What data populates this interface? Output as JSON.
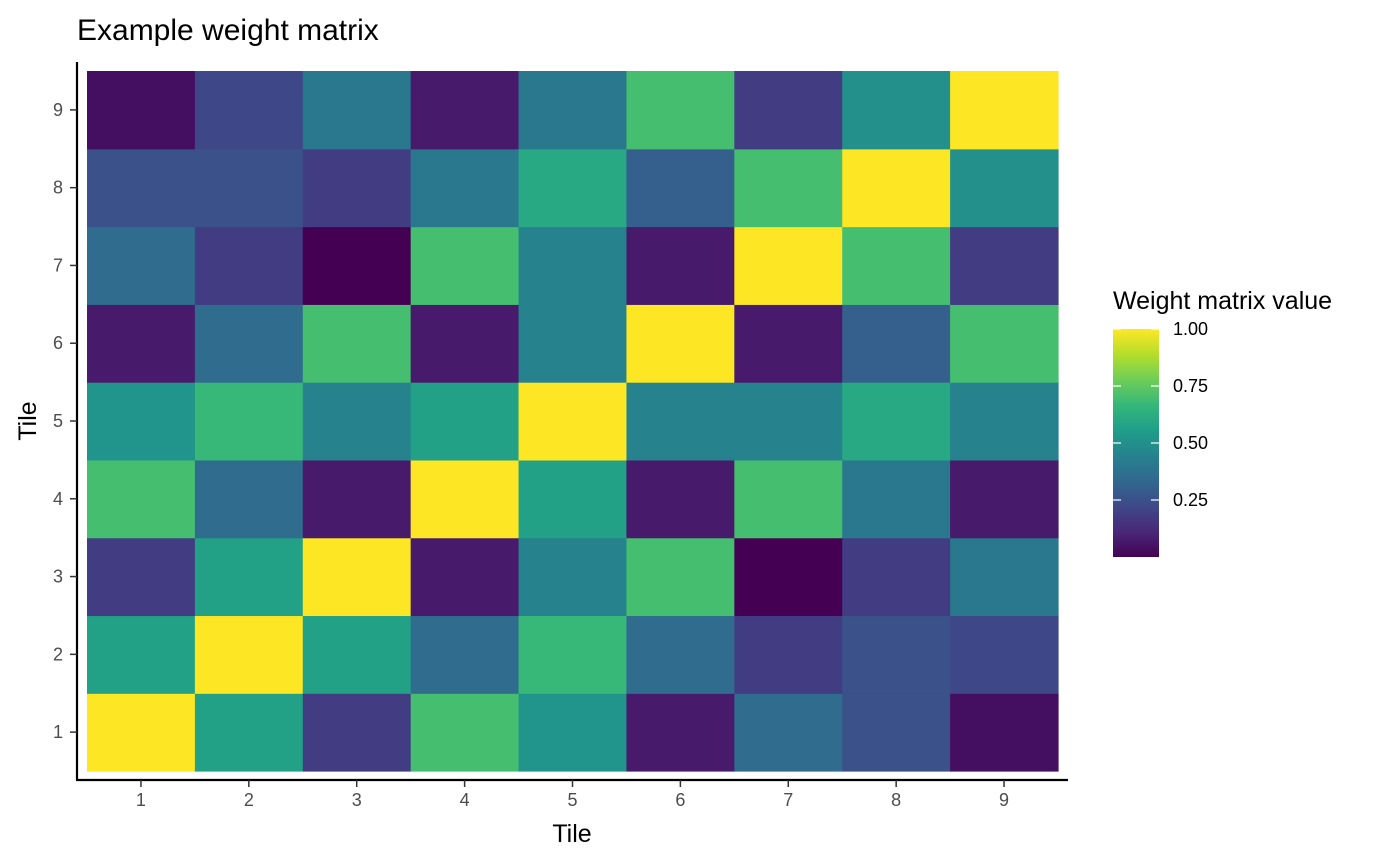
{
  "chart_data": {
    "type": "heatmap",
    "title": "Example weight matrix",
    "xlabel": "Tile",
    "ylabel": "Tile",
    "x_categories": [
      "1",
      "2",
      "3",
      "4",
      "5",
      "6",
      "7",
      "8",
      "9"
    ],
    "y_categories": [
      "1",
      "2",
      "3",
      "4",
      "5",
      "6",
      "7",
      "8",
      "9"
    ],
    "values": [
      [
        1.0,
        0.57,
        0.18,
        0.7,
        0.52,
        0.07,
        0.35,
        0.25,
        0.04
      ],
      [
        0.57,
        1.0,
        0.57,
        0.35,
        0.67,
        0.35,
        0.18,
        0.25,
        0.22
      ],
      [
        0.18,
        0.57,
        1.0,
        0.07,
        0.45,
        0.7,
        0.0,
        0.18,
        0.4
      ],
      [
        0.7,
        0.35,
        0.07,
        1.0,
        0.57,
        0.07,
        0.7,
        0.4,
        0.07
      ],
      [
        0.52,
        0.67,
        0.45,
        0.57,
        1.0,
        0.45,
        0.45,
        0.6,
        0.4
      ],
      [
        0.07,
        0.35,
        0.7,
        0.07,
        0.45,
        1.0,
        0.07,
        0.3,
        0.7
      ],
      [
        0.35,
        0.18,
        0.0,
        0.7,
        0.45,
        0.07,
        1.0,
        0.7,
        0.18
      ],
      [
        0.25,
        0.25,
        0.18,
        0.4,
        0.6,
        0.3,
        0.7,
        1.0,
        0.5
      ],
      [
        0.04,
        0.22,
        0.4,
        0.07,
        0.45,
        0.7,
        0.18,
        0.5,
        1.0
      ]
    ],
    "legend": {
      "title": "Weight matrix value",
      "breaks": [
        0.25,
        0.5,
        0.75,
        1.0
      ],
      "labels": [
        "0.25",
        "0.50",
        "0.75",
        "1.00"
      ],
      "min": 0.0,
      "max": 1.0,
      "placement": "right"
    },
    "colormap": "viridis",
    "colormap_stops": [
      "#440154",
      "#482878",
      "#3e4989",
      "#31688e",
      "#26828e",
      "#1f9e89",
      "#35b779",
      "#6ece58",
      "#b5de2b",
      "#fde725"
    ],
    "grid": false
  }
}
